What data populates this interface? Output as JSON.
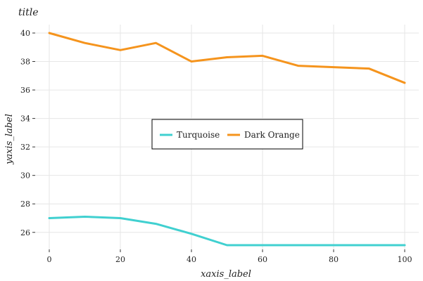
{
  "chart_data": {
    "type": "line",
    "title": "title",
    "xlabel": "xaxis_label",
    "ylabel": "yaxis_label",
    "x": [
      0,
      10,
      20,
      30,
      40,
      50,
      60,
      70,
      80,
      90,
      100
    ],
    "series": [
      {
        "name": "Turquoise",
        "color": "#40d0d0",
        "values": [
          27.0,
          27.1,
          27.0,
          26.6,
          25.9,
          25.1,
          25.1,
          25.1,
          25.1,
          25.1,
          25.1
        ]
      },
      {
        "name": "Dark Orange",
        "color": "#f5941d",
        "values": [
          40.0,
          39.3,
          38.8,
          39.3,
          38.0,
          38.3,
          38.4,
          37.7,
          37.6,
          37.5,
          36.5
        ]
      }
    ],
    "xlim": [
      0,
      100
    ],
    "ylim": [
      25.1,
      40.0
    ],
    "x_ticks": [
      "0",
      "20",
      "40",
      "60",
      "80",
      "100"
    ],
    "y_ticks": [
      "26",
      "28",
      "30",
      "32",
      "34",
      "36",
      "38",
      "40"
    ],
    "grid": true,
    "legend_position": "center"
  }
}
